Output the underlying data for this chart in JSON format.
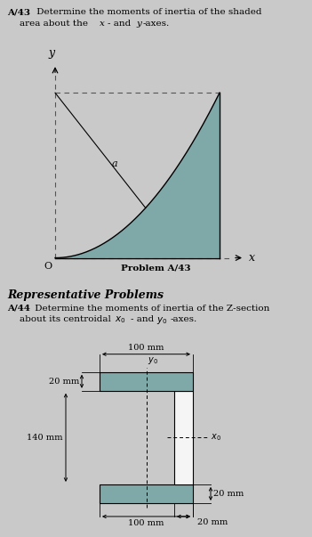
{
  "bg_color": "#c9c9c9",
  "shaded_color": "#7fa8a8",
  "white_color": "#f0f0f0",
  "fig_width": 3.51,
  "fig_height": 6.03,
  "dpi": 100,
  "top_panel": {
    "title_bold": "A/43",
    "title_rest": " Determine the moments of inertia of the shaded",
    "title_line2": "area about the ",
    "title_line2_x": "x",
    "title_line2_mid": "- and ",
    "title_line2_y": "y",
    "title_line2_end": "-axes.",
    "bottom_label": "Problem A/43",
    "label_a": "a",
    "label_O": "O",
    "label_x": "x",
    "label_y": "y"
  },
  "bottom_panel": {
    "header": "Representative Problems",
    "title_bold": "A/44",
    "title_rest": " Determine the moments of inertia of the Z-section",
    "title_line2": "about its centroidal ",
    "dim_100_top": "100 mm",
    "dim_20_flange": "20 mm",
    "dim_140": "140 mm",
    "dim_20_web": "20 mm",
    "dim_100_bot": "100 mm",
    "dim_20_bot": "20 mm"
  }
}
